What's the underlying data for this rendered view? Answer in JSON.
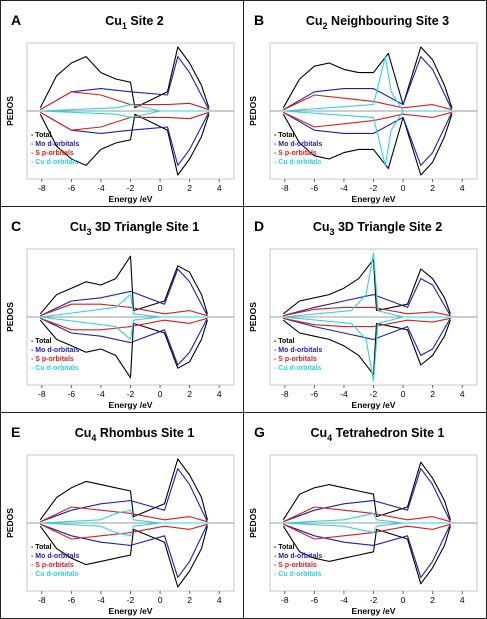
{
  "colors": {
    "total": "#000000",
    "mo": "#1f1fa8",
    "s": "#d42020",
    "cu": "#2fd3e0",
    "axis": "#9a9a9a",
    "frame": "#c8c8c8"
  },
  "chart_data": [
    {
      "type": "line",
      "label": "A",
      "title": "Cu",
      "title_sub": "1",
      "title_rest": " Site 2",
      "xlabel": "Energy /eV",
      "ylabel": "PEDOS",
      "xlim": [
        -9,
        5
      ],
      "xticks": [
        "-8",
        "-6",
        "-4",
        "-2",
        "0",
        "2",
        "4"
      ],
      "grid": false,
      "legend_position": "bottom-left",
      "series": [
        {
          "name": "Total",
          "color": "#000000",
          "x": [
            -8.1,
            -7,
            -6,
            -5,
            -4,
            -3,
            -2,
            -1.7,
            0.5,
            1.2,
            2,
            2.8,
            3.3
          ],
          "y": [
            0.05,
            0.55,
            0.75,
            0.85,
            0.6,
            0.5,
            0.45,
            0.05,
            0.3,
            1.0,
            0.75,
            0.4,
            0.05
          ]
        },
        {
          "name": "Mo d-orbitals",
          "color": "#1f1fa8",
          "x": [
            -8.1,
            -6,
            -4,
            -2,
            0.5,
            1.2,
            2,
            3.3
          ],
          "y": [
            0.02,
            0.3,
            0.35,
            0.3,
            0.25,
            0.85,
            0.6,
            0.02
          ]
        },
        {
          "name": "S p-orbitals",
          "color": "#d42020",
          "x": [
            -8.1,
            -6,
            -4,
            -2,
            0.5,
            2,
            3.3
          ],
          "y": [
            0.02,
            0.3,
            0.25,
            0.1,
            0.1,
            0.12,
            0.02
          ]
        },
        {
          "name": "Cu d-orbitals",
          "color": "#2fd3e0",
          "x": [
            -8.1,
            -3,
            -1.9,
            0,
            3.3
          ],
          "y": [
            0.0,
            0.05,
            0.1,
            0.0,
            0.0
          ]
        }
      ]
    },
    {
      "type": "line",
      "label": "B",
      "title": "Cu",
      "title_sub": "2",
      "title_rest": " Neighbouring Site 3",
      "xlabel": "Energy /eV",
      "ylabel": "PEDOS",
      "xlim": [
        -9,
        5
      ],
      "xticks": [
        "-8",
        "-6",
        "-4",
        "-2",
        "0",
        "2",
        "4"
      ],
      "grid": false,
      "legend_position": "bottom-left",
      "series": [
        {
          "name": "Total",
          "color": "#000000",
          "x": [
            -8.1,
            -7,
            -6,
            -5,
            -4,
            -3,
            -2,
            -1,
            0,
            1.2,
            2,
            2.8,
            3.3
          ],
          "y": [
            0.05,
            0.5,
            0.7,
            0.75,
            0.65,
            0.6,
            0.6,
            0.9,
            0.1,
            1.0,
            0.8,
            0.4,
            0.05
          ]
        },
        {
          "name": "Mo d-orbitals",
          "color": "#1f1fa8",
          "x": [
            -8.1,
            -6,
            -4,
            -2,
            0,
            1.2,
            2,
            3.3
          ],
          "y": [
            0.02,
            0.3,
            0.35,
            0.35,
            0.1,
            0.85,
            0.65,
            0.02
          ]
        },
        {
          "name": "S p-orbitals",
          "color": "#d42020",
          "x": [
            -8.1,
            -6,
            -4,
            -2,
            0,
            2,
            3.3
          ],
          "y": [
            0.02,
            0.25,
            0.2,
            0.15,
            0.05,
            0.1,
            0.02
          ]
        },
        {
          "name": "Cu d-orbitals",
          "color": "#2fd3e0",
          "x": [
            -8.1,
            -2,
            -1.2,
            -0.8,
            0,
            3.3
          ],
          "y": [
            0.0,
            0.1,
            0.85,
            0.3,
            0.0,
            0.0
          ]
        }
      ]
    },
    {
      "type": "line",
      "label": "C",
      "title": "Cu",
      "title_sub": "3",
      "title_rest": " 3D Triangle Site 1",
      "xlabel": "Energy /eV",
      "ylabel": "PEDOS",
      "xlim": [
        -9,
        5
      ],
      "xticks": [
        "-8",
        "-6",
        "-4",
        "-2",
        "0",
        "2",
        "4"
      ],
      "grid": false,
      "legend_position": "bottom-left",
      "series": [
        {
          "name": "Total",
          "color": "#000000",
          "x": [
            -8.1,
            -7,
            -6,
            -5,
            -4,
            -3,
            -2,
            -1.8,
            0.3,
            1.2,
            2,
            2.8,
            3.2
          ],
          "y": [
            0.05,
            0.35,
            0.45,
            0.55,
            0.5,
            0.6,
            0.95,
            0.1,
            0.25,
            0.8,
            0.7,
            0.35,
            0.05
          ]
        },
        {
          "name": "Mo d-orbitals",
          "color": "#1f1fa8",
          "x": [
            -8.1,
            -6,
            -4,
            -2,
            0.3,
            1.2,
            2,
            3.2
          ],
          "y": [
            0.02,
            0.25,
            0.3,
            0.4,
            0.2,
            0.75,
            0.55,
            0.02
          ]
        },
        {
          "name": "S p-orbitals",
          "color": "#d42020",
          "x": [
            -8.1,
            -6,
            -4,
            -2,
            0.3,
            2,
            3.2
          ],
          "y": [
            0.02,
            0.2,
            0.2,
            0.15,
            0.05,
            0.1,
            0.02
          ]
        },
        {
          "name": "Cu d-orbitals",
          "color": "#2fd3e0",
          "x": [
            -8.1,
            -3,
            -2,
            -1.8,
            0,
            3.2
          ],
          "y": [
            0.0,
            0.15,
            0.35,
            0.05,
            0.0,
            0.0
          ]
        }
      ]
    },
    {
      "type": "line",
      "label": "D",
      "title": "Cu",
      "title_sub": "3",
      "title_rest": " 3D Triangle Site 2",
      "xlabel": "Energy /eV",
      "ylabel": "PEDOS",
      "xlim": [
        -9,
        5
      ],
      "xticks": [
        "-8",
        "-6",
        "-4",
        "-2",
        "0",
        "2",
        "4"
      ],
      "grid": false,
      "legend_position": "bottom-left",
      "series": [
        {
          "name": "Total",
          "color": "#000000",
          "x": [
            -8.1,
            -7,
            -6,
            -5,
            -4,
            -3,
            -2,
            -1.8,
            0.3,
            1.2,
            2,
            2.8,
            3.2
          ],
          "y": [
            0.05,
            0.25,
            0.3,
            0.35,
            0.45,
            0.6,
            0.9,
            0.1,
            0.2,
            0.75,
            0.6,
            0.3,
            0.05
          ]
        },
        {
          "name": "Mo d-orbitals",
          "color": "#1f1fa8",
          "x": [
            -8.1,
            -6,
            -4,
            -2,
            0.3,
            1.2,
            2,
            3.2
          ],
          "y": [
            0.02,
            0.15,
            0.25,
            0.35,
            0.15,
            0.6,
            0.5,
            0.02
          ]
        },
        {
          "name": "S p-orbitals",
          "color": "#d42020",
          "x": [
            -8.1,
            -6,
            -4,
            -2,
            0.3,
            2,
            3.2
          ],
          "y": [
            0.02,
            0.12,
            0.15,
            0.15,
            0.05,
            0.08,
            0.02
          ]
        },
        {
          "name": "Cu d-orbitals",
          "color": "#2fd3e0",
          "x": [
            -8.1,
            -3.5,
            -2.5,
            -2,
            -1.7,
            0,
            3.2
          ],
          "y": [
            0.0,
            0.1,
            0.35,
            1.0,
            0.1,
            0.0,
            0.0
          ]
        }
      ]
    },
    {
      "type": "line",
      "label": "E",
      "title": "Cu",
      "title_sub": "4",
      "title_rest": " Rhombus Site 1",
      "xlabel": "Energy /eV",
      "ylabel": "PEDOS",
      "xlim": [
        -9,
        5
      ],
      "xticks": [
        "-8",
        "-6",
        "-4",
        "-2",
        "0",
        "2",
        "4"
      ],
      "grid": false,
      "legend_position": "bottom-left",
      "series": [
        {
          "name": "Total",
          "color": "#000000",
          "x": [
            -8.1,
            -7,
            -6,
            -5,
            -4,
            -3,
            -2,
            -1.8,
            0.3,
            1.2,
            2,
            2.8,
            3.2
          ],
          "y": [
            0.05,
            0.4,
            0.55,
            0.65,
            0.6,
            0.55,
            0.5,
            0.1,
            0.3,
            1.0,
            0.75,
            0.4,
            0.05
          ]
        },
        {
          "name": "Mo d-orbitals",
          "color": "#1f1fa8",
          "x": [
            -8.1,
            -6,
            -4,
            -2,
            0.3,
            1.2,
            2,
            3.2
          ],
          "y": [
            0.02,
            0.2,
            0.3,
            0.35,
            0.2,
            0.85,
            0.6,
            0.02
          ]
        },
        {
          "name": "S p-orbitals",
          "color": "#d42020",
          "x": [
            -8.1,
            -6,
            -4,
            -2,
            0.3,
            2,
            3.2
          ],
          "y": [
            0.02,
            0.25,
            0.2,
            0.15,
            0.05,
            0.1,
            0.02
          ]
        },
        {
          "name": "Cu d-orbitals",
          "color": "#2fd3e0",
          "x": [
            -8.1,
            -4,
            -3,
            -2,
            -1.8,
            0,
            3.2
          ],
          "y": [
            0.0,
            0.05,
            0.15,
            0.2,
            0.05,
            0.0,
            0.0
          ]
        }
      ]
    },
    {
      "type": "line",
      "label": "G",
      "title": "Cu",
      "title_sub": "4",
      "title_rest": " Tetrahedron Site 1",
      "xlabel": "Energy /eV",
      "ylabel": "PEDOS",
      "xlim": [
        -9,
        5
      ],
      "xticks": [
        "-8",
        "-6",
        "-4",
        "-2",
        "0",
        "2",
        "4"
      ],
      "grid": false,
      "legend_position": "bottom-left",
      "series": [
        {
          "name": "Total",
          "color": "#000000",
          "x": [
            -8.1,
            -7,
            -6,
            -5,
            -4,
            -3,
            -2,
            -1.8,
            0.3,
            1.2,
            2,
            2.8,
            3.2
          ],
          "y": [
            0.05,
            0.45,
            0.55,
            0.6,
            0.55,
            0.5,
            0.45,
            0.1,
            0.25,
            0.95,
            0.7,
            0.35,
            0.05
          ]
        },
        {
          "name": "Mo d-orbitals",
          "color": "#1f1fa8",
          "x": [
            -8.1,
            -6,
            -4,
            -2,
            0.3,
            1.2,
            2,
            3.2
          ],
          "y": [
            0.02,
            0.2,
            0.3,
            0.35,
            0.2,
            0.85,
            0.6,
            0.02
          ]
        },
        {
          "name": "S p-orbitals",
          "color": "#d42020",
          "x": [
            -8.1,
            -6,
            -4,
            -2,
            0.3,
            2,
            3.2
          ],
          "y": [
            0.02,
            0.25,
            0.2,
            0.15,
            0.05,
            0.1,
            0.02
          ]
        },
        {
          "name": "Cu d-orbitals",
          "color": "#2fd3e0",
          "x": [
            -8.1,
            -4,
            -3,
            -2,
            -1.8,
            0,
            3.2
          ],
          "y": [
            0.0,
            0.05,
            0.1,
            0.15,
            0.05,
            0.0,
            0.0
          ]
        }
      ]
    }
  ]
}
